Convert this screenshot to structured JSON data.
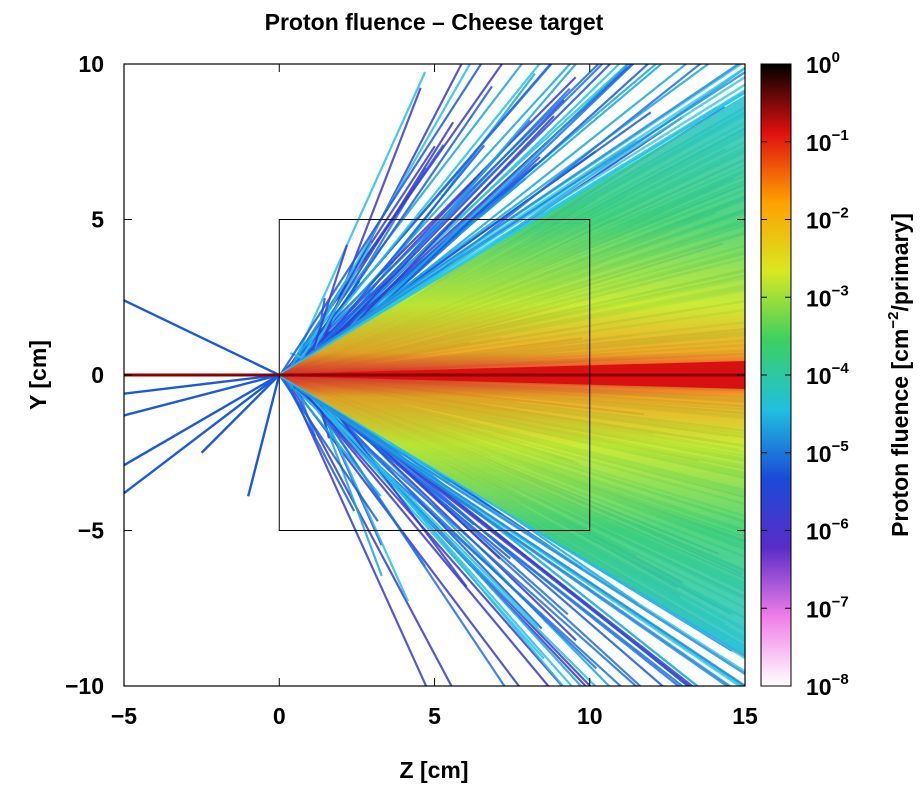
{
  "chart_data": {
    "type": "heatmap",
    "title": "Proton fluence – Cheese target",
    "xlabel": "Z [cm]",
    "ylabel": "Y [cm]",
    "xlim": [
      -5,
      15
    ],
    "ylim": [
      -10,
      10
    ],
    "xticks": [
      {
        "value": -5,
        "label": "−5"
      },
      {
        "value": 0,
        "label": "0"
      },
      {
        "value": 5,
        "label": "5"
      },
      {
        "value": 10,
        "label": "10"
      },
      {
        "value": 15,
        "label": "15"
      }
    ],
    "yticks": [
      {
        "value": -10,
        "label": "−10"
      },
      {
        "value": -5,
        "label": "−5"
      },
      {
        "value": 0,
        "label": "0"
      },
      {
        "value": 5,
        "label": "5"
      },
      {
        "value": 10,
        "label": "10"
      }
    ],
    "target_box": {
      "z": [
        0,
        10
      ],
      "y": [
        -5,
        5
      ]
    },
    "colorbar": {
      "label": "Proton fluence [cm⁻²/primary]",
      "scale": "log",
      "range": [
        1e-08,
        1
      ],
      "ticks": [
        {
          "value": 1,
          "base": "10",
          "exp": "0"
        },
        {
          "value": 0.1,
          "base": "10",
          "exp": "−1"
        },
        {
          "value": 0.01,
          "base": "10",
          "exp": "−2"
        },
        {
          "value": 0.001,
          "base": "10",
          "exp": "−3"
        },
        {
          "value": 0.0001,
          "base": "10",
          "exp": "−4"
        },
        {
          "value": 1e-05,
          "base": "10",
          "exp": "−5"
        },
        {
          "value": 1e-06,
          "base": "10",
          "exp": "−6"
        },
        {
          "value": 1e-07,
          "base": "10",
          "exp": "−7"
        },
        {
          "value": 1e-08,
          "base": "10",
          "exp": "−8"
        }
      ],
      "colors": [
        "#ffffff",
        "#f07ee8",
        "#5a2cc8",
        "#1a4ad8",
        "#20c0e0",
        "#3cd060",
        "#d8e820",
        "#ffa000",
        "#e01010",
        "#000000"
      ]
    },
    "beam_axis": {
      "y": 0,
      "z_start": -5,
      "color": "#8b0000"
    },
    "grid": false
  }
}
